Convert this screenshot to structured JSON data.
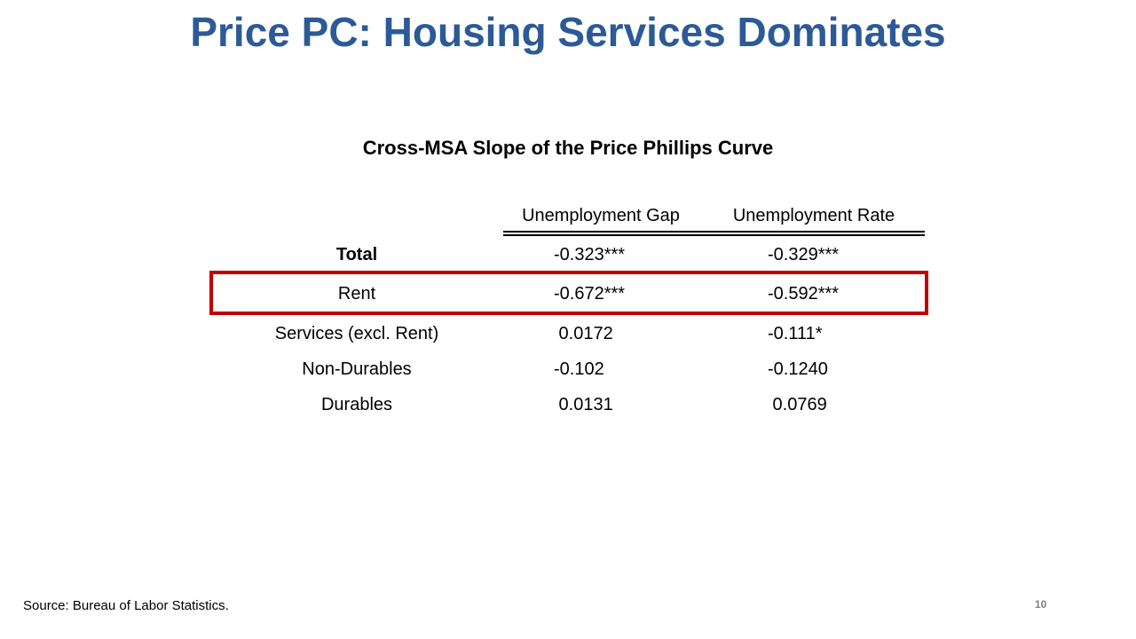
{
  "slide": {
    "title": "Price PC: Housing Services Dominates",
    "table_title": "Cross-MSA Slope of the Price Phillips Curve",
    "columns": [
      "Unemployment Gap",
      "Unemployment Rate"
    ],
    "rows": [
      {
        "label": "Total",
        "bold": true,
        "gap": "-0.323***",
        "rate": "-0.329***",
        "highlighted": false
      },
      {
        "label": "Rent",
        "bold": false,
        "gap": "-0.672***",
        "rate": "-0.592***",
        "highlighted": true
      },
      {
        "label": "Services (excl. Rent)",
        "bold": false,
        "gap": " 0.0172",
        "rate": "-0.111*",
        "highlighted": false
      },
      {
        "label": "Non-Durables",
        "bold": false,
        "gap": "-0.102",
        "rate": "-0.1240",
        "highlighted": false
      },
      {
        "label": "Durables",
        "bold": false,
        "gap": " 0.0131",
        "rate": " 0.0769",
        "highlighted": false
      }
    ],
    "source": "Source: Bureau of Labor Statistics.",
    "page_number": "10"
  },
  "colors": {
    "title": "#2c5a96",
    "highlight_border": "#c00000",
    "page_number": "#7f7f7f"
  }
}
